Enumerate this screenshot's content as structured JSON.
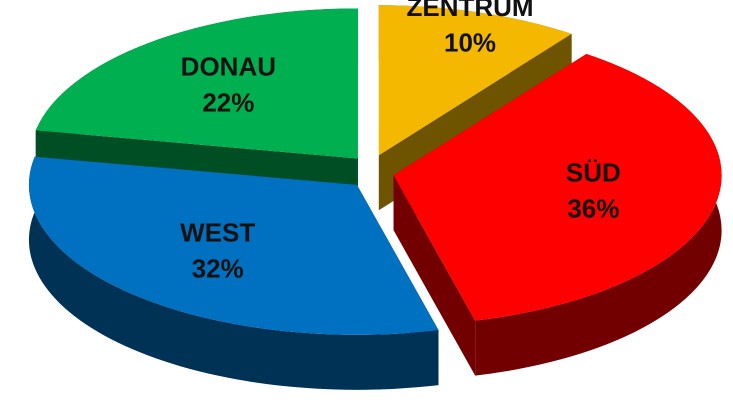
{
  "chart_data": {
    "type": "pie",
    "categories": [
      "ZENTRUM",
      "SÜD",
      "WEST",
      "DONAU"
    ],
    "values": [
      10,
      36,
      32,
      22
    ],
    "value_labels": [
      "10%",
      "36%",
      "32%",
      "22%"
    ],
    "colors": [
      "#f5b800",
      "#ff0000",
      "#0070c0",
      "#00b050"
    ]
  }
}
